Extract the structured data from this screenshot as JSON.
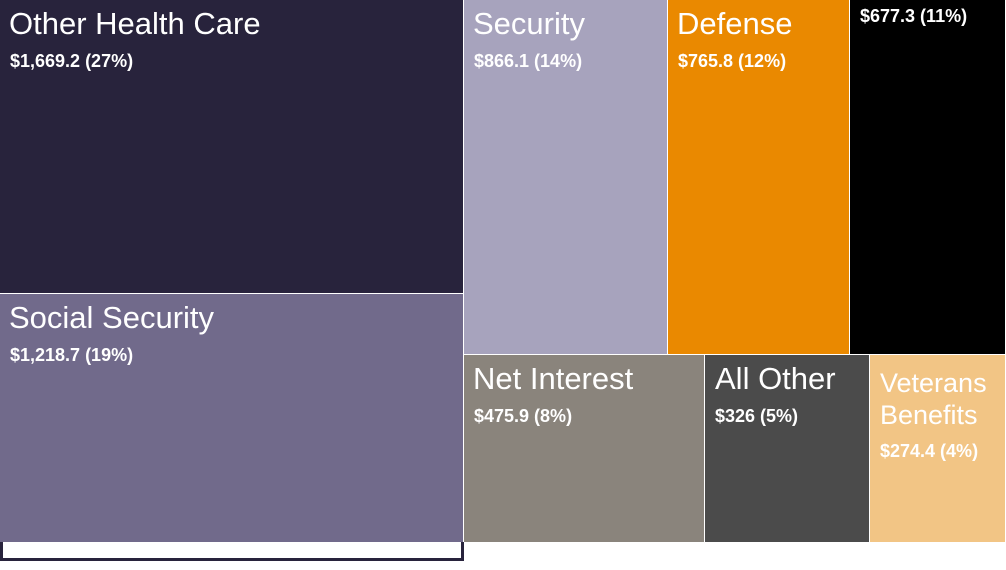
{
  "chart_data": {
    "type": "treemap",
    "unit_note": "",
    "tiles": [
      {
        "name": "Other Health Care",
        "value_label": "$1,669.2 (27%)",
        "value": 1669.2,
        "percent": 27,
        "color": "#28233c"
      },
      {
        "name": "Social Security",
        "value_label": "$1,218.7 (19%)",
        "value": 1218.7,
        "percent": 19,
        "color": "#716a8b"
      },
      {
        "name": "Security",
        "value_label": "$866.1 (14%)",
        "value": 866.1,
        "percent": 14,
        "color": "#a7a3bd"
      },
      {
        "name": "Defense",
        "value_label": "$765.8 (12%)",
        "value": 765.8,
        "percent": 12,
        "color": "#ea8900"
      },
      {
        "name": "",
        "value_label": "$677.3 (11%)",
        "value": 677.3,
        "percent": 11,
        "color": "#000000"
      },
      {
        "name": "Net Interest",
        "value_label": "$475.9 (8%)",
        "value": 475.9,
        "percent": 8,
        "color": "#8a847c"
      },
      {
        "name": "All Other",
        "value_label": "$326 (5%)",
        "value": 326,
        "percent": 5,
        "color": "#4b4b4b"
      },
      {
        "name": "Veterans Benefits",
        "value_label": "$274.4 (4%)",
        "value": 274.4,
        "percent": 4,
        "color": "#f2c585"
      }
    ]
  }
}
